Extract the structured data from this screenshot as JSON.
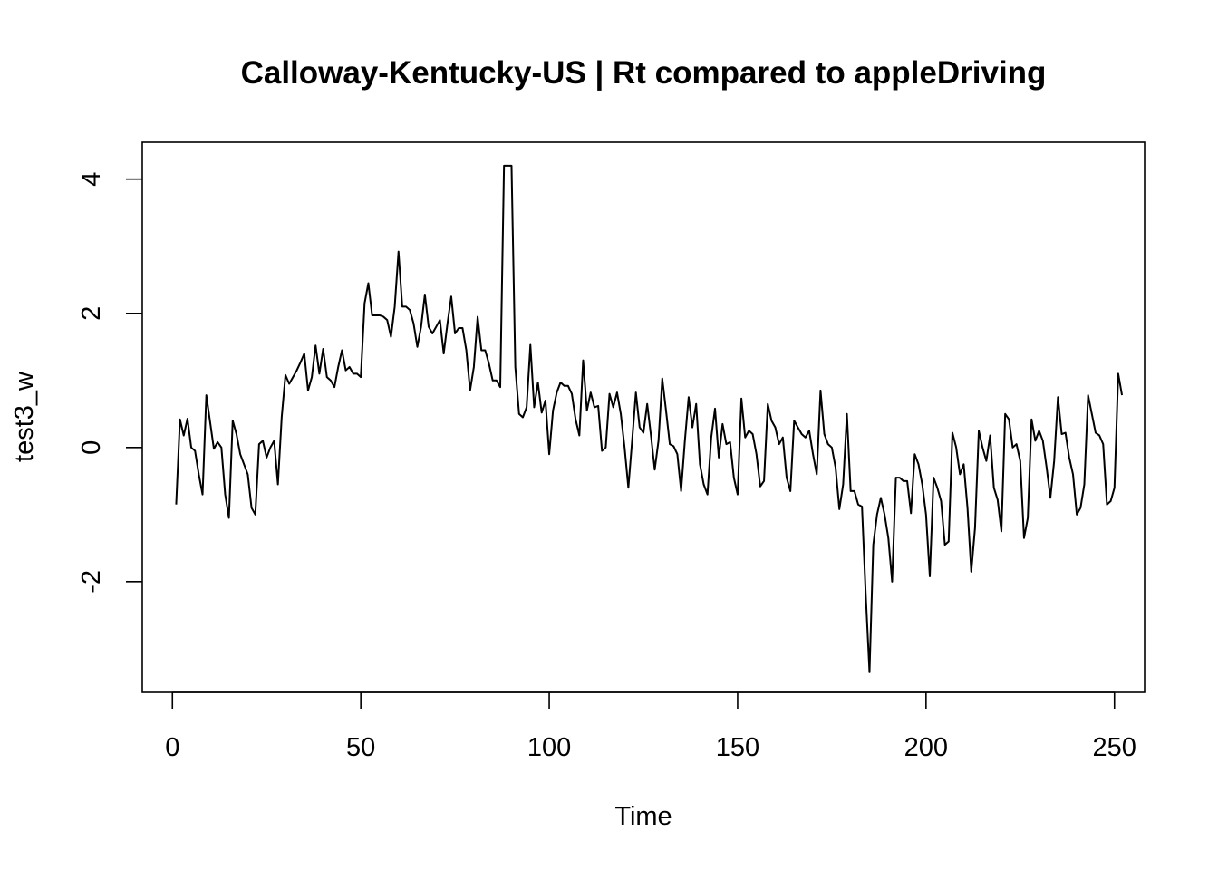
{
  "chart_data": {
    "type": "line",
    "title": "Calloway-Kentucky-US | Rt compared to appleDriving",
    "xlabel": "Time",
    "ylabel": "test3_w",
    "xlim": [
      -8,
      258
    ],
    "ylim": [
      -3.65,
      4.55
    ],
    "x_ticks": [
      0,
      50,
      100,
      150,
      200,
      250
    ],
    "x_tick_labels": [
      "0",
      "50",
      "100",
      "150",
      "200",
      "250"
    ],
    "y_ticks": [
      -2,
      0,
      2,
      4
    ],
    "y_tick_labels": [
      "-2",
      "0",
      "2",
      "4"
    ],
    "grid": false,
    "legend": "none",
    "line_color": "#000000",
    "series": [
      {
        "x_start": 1,
        "values": [
          -0.85,
          0.42,
          0.18,
          0.43,
          0.0,
          -0.05,
          -0.4,
          -0.7,
          0.78,
          0.38,
          -0.02,
          0.08,
          0.0,
          -0.7,
          -1.05,
          0.4,
          0.2,
          -0.1,
          -0.25,
          -0.4,
          -0.9,
          -1.0,
          0.05,
          0.1,
          -0.15,
          0.0,
          0.1,
          -0.55,
          0.45,
          1.08,
          0.95,
          1.05,
          1.15,
          1.27,
          1.4,
          0.85,
          1.05,
          1.52,
          1.1,
          1.47,
          1.05,
          1.0,
          0.9,
          1.2,
          1.45,
          1.15,
          1.2,
          1.1,
          1.1,
          1.05,
          2.15,
          2.45,
          1.97,
          1.97,
          1.97,
          1.95,
          1.9,
          1.65,
          2.1,
          2.92,
          2.1,
          2.1,
          2.05,
          1.85,
          1.5,
          1.8,
          2.28,
          1.8,
          1.7,
          1.8,
          1.9,
          1.4,
          1.85,
          2.25,
          1.7,
          1.78,
          1.78,
          1.45,
          0.85,
          1.2,
          1.95,
          1.45,
          1.45,
          1.25,
          1.0,
          1.0,
          0.9,
          4.2,
          4.2,
          4.2,
          1.2,
          0.5,
          0.45,
          0.6,
          1.53,
          0.6,
          0.97,
          0.52,
          0.7,
          -0.1,
          0.55,
          0.82,
          0.97,
          0.92,
          0.92,
          0.8,
          0.42,
          0.18,
          1.3,
          0.55,
          0.82,
          0.6,
          0.62,
          -0.05,
          0.0,
          0.8,
          0.6,
          0.82,
          0.5,
          0.0,
          -0.6,
          0.1,
          0.82,
          0.3,
          0.22,
          0.65,
          0.18,
          -0.33,
          0.1,
          1.03,
          0.55,
          0.05,
          0.02,
          -0.1,
          -0.65,
          0.1,
          0.75,
          0.3,
          0.65,
          -0.25,
          -0.55,
          -0.7,
          0.15,
          0.58,
          -0.15,
          0.35,
          0.05,
          0.08,
          -0.45,
          -0.7,
          0.73,
          0.15,
          0.25,
          0.2,
          -0.1,
          -0.58,
          -0.5,
          0.65,
          0.4,
          0.3,
          0.05,
          0.15,
          -0.45,
          -0.65,
          0.4,
          0.3,
          0.2,
          0.15,
          0.25,
          -0.1,
          -0.4,
          0.85,
          0.2,
          0.05,
          0.0,
          -0.3,
          -0.92,
          -0.55,
          0.5,
          -0.65,
          -0.65,
          -0.85,
          -0.88,
          -2.2,
          -3.35,
          -1.45,
          -1.0,
          -0.75,
          -1.0,
          -1.35,
          -2.0,
          -0.45,
          -0.45,
          -0.5,
          -0.5,
          -0.98,
          -0.1,
          -0.25,
          -0.55,
          -1.0,
          -1.92,
          -0.45,
          -0.6,
          -0.8,
          -1.45,
          -1.4,
          0.22,
          0.0,
          -0.4,
          -0.25,
          -0.9,
          -1.85,
          -1.2,
          0.25,
          0.0,
          -0.2,
          0.18,
          -0.6,
          -0.78,
          -1.25,
          0.5,
          0.42,
          0.0,
          0.05,
          -0.2,
          -1.35,
          -1.05,
          0.42,
          0.1,
          0.25,
          0.1,
          -0.3,
          -0.75,
          -0.2,
          0.75,
          0.2,
          0.22,
          -0.15,
          -0.4,
          -1.0,
          -0.9,
          -0.55,
          0.78,
          0.5,
          0.22,
          0.18,
          0.05,
          -0.85,
          -0.8,
          -0.6,
          1.1,
          0.78
        ]
      }
    ]
  }
}
